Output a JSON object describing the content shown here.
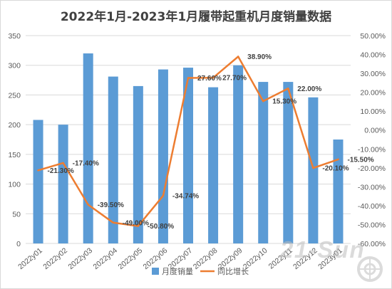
{
  "chart_data": {
    "type": "bar",
    "title": "2022年1月-2023年1月履带起重机月度销量数据",
    "categories": [
      "2022y01",
      "2022y02",
      "2022y03",
      "2022y04",
      "2022y05",
      "2022y06",
      "2022y07",
      "2022y08",
      "2022y09",
      "2022y10",
      "2022y11",
      "2022y12",
      "2023y01"
    ],
    "series": [
      {
        "name": "月度销量",
        "type": "bar",
        "axis": "left",
        "color": "#5B9BD5",
        "values": [
          208,
          200,
          320,
          281,
          265,
          293,
          296,
          263,
          300,
          272,
          272,
          246,
          175
        ]
      },
      {
        "name": "同比增长",
        "type": "line",
        "axis": "right",
        "color": "#ED7D31",
        "values": [
          -21.3,
          -17.4,
          -39.5,
          -49.0,
          -50.8,
          -34.74,
          27.6,
          27.7,
          38.9,
          15.3,
          22.0,
          -20.1,
          -15.5
        ],
        "labels": [
          "-21.30%",
          "-17.40%",
          "-39.50%",
          "-49.00%",
          "-50.80%",
          "-34.74%",
          "27.60%",
          "27.70%",
          "38.90%",
          "15.30%",
          "22.00%",
          "-20.10%",
          "-15.50%"
        ]
      }
    ],
    "y_left": {
      "range": [
        0,
        350
      ],
      "ticks": [
        "0",
        "50",
        "100",
        "150",
        "200",
        "250",
        "300",
        "350"
      ]
    },
    "y_right": {
      "range": [
        -60,
        50
      ],
      "ticks": [
        "-60.00%",
        "-50.00%",
        "-40.00%",
        "-30.00%",
        "-20.00%",
        "-10.00%",
        "0.00%",
        "10.00%",
        "20.00%",
        "30.00%",
        "40.00%",
        "50.00%"
      ]
    },
    "grid": true,
    "legend": "bottom"
  },
  "watermark": {
    "text": "21-Sun",
    "color": "#BFBFBF"
  }
}
